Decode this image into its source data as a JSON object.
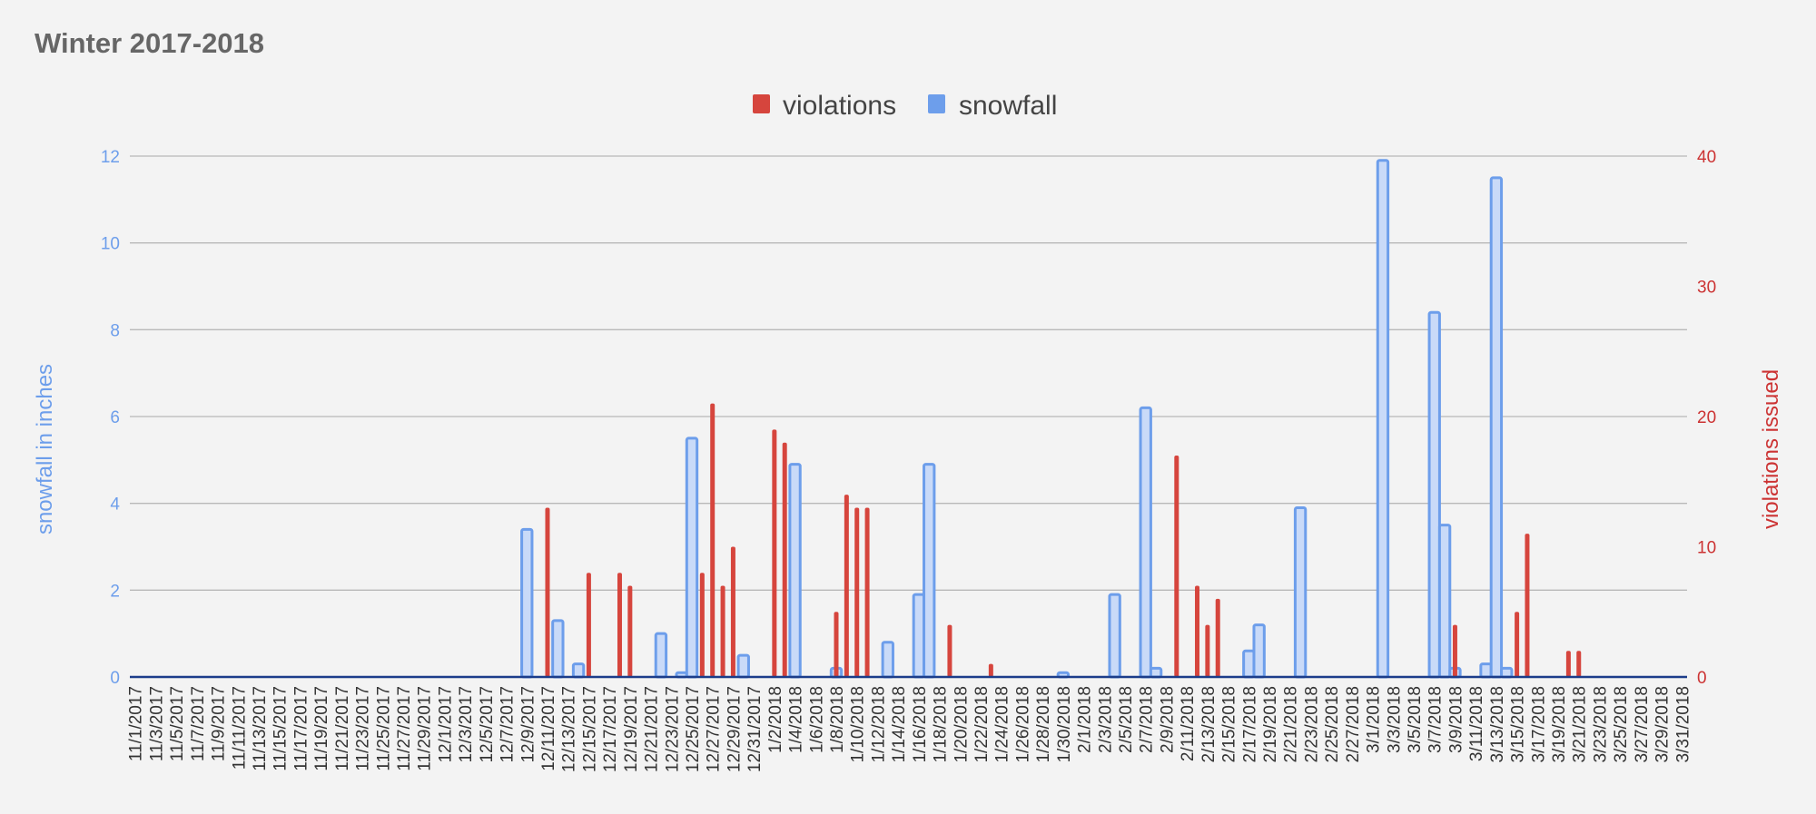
{
  "chart_data": {
    "title": "Winter 2017-2018",
    "type": "bar",
    "left_axis": {
      "label": "snowfall in inches",
      "ticks": [
        "0",
        "2",
        "4",
        "6",
        "8",
        "10",
        "12"
      ],
      "range": [
        0,
        12
      ]
    },
    "right_axis": {
      "label": "violations issued",
      "ticks": [
        "0",
        "10",
        "20",
        "30",
        "40"
      ],
      "range": [
        0,
        40
      ]
    },
    "legend": [
      "violations",
      "snowfall"
    ],
    "legend_position": "top-center",
    "colors": {
      "violations": "#d6453d",
      "snowfall": "#6d9eeb",
      "snowfall_fill": "#c9daf8",
      "axis": "#1c3d8a",
      "left_axis_text": "#6d9eeb",
      "right_axis_text": "#cc3333"
    },
    "x_labels": [
      "11/1/2017",
      "11/3/2017",
      "11/5/2017",
      "11/7/2017",
      "11/9/2017",
      "11/11/2017",
      "11/13/2017",
      "11/15/2017",
      "11/17/2017",
      "11/19/2017",
      "11/21/2017",
      "11/23/2017",
      "11/25/2017",
      "11/27/2017",
      "11/29/2017",
      "12/1/2017",
      "12/3/2017",
      "12/5/2017",
      "12/7/2017",
      "12/9/2017",
      "12/11/2017",
      "12/13/2017",
      "12/15/2017",
      "12/17/2017",
      "12/19/2017",
      "12/21/2017",
      "12/23/2017",
      "12/25/2017",
      "12/27/2017",
      "12/29/2017",
      "12/31/2017",
      "1/2/2018",
      "1/4/2018",
      "1/6/2018",
      "1/8/2018",
      "1/10/2018",
      "1/12/2018",
      "1/14/2018",
      "1/16/2018",
      "1/18/2018",
      "1/20/2018",
      "1/22/2018",
      "1/24/2018",
      "1/26/2018",
      "1/28/2018",
      "1/30/2018",
      "2/1/2018",
      "2/3/2018",
      "2/5/2018",
      "2/7/2018",
      "2/9/2018",
      "2/11/2018",
      "2/13/2018",
      "2/15/2018",
      "2/17/2018",
      "2/19/2018",
      "2/21/2018",
      "2/23/2018",
      "2/25/2018",
      "2/27/2018",
      "3/1/2018",
      "3/3/2018",
      "3/5/2018",
      "3/7/2018",
      "3/9/2018",
      "3/11/2018",
      "3/13/2018",
      "3/15/2018",
      "3/17/2018",
      "3/19/2018",
      "3/21/2018",
      "3/23/2018",
      "3/25/2018",
      "3/27/2018",
      "3/29/2018",
      "3/31/2018"
    ],
    "snowfall": [
      {
        "date": "12/9/2017",
        "value": 3.4
      },
      {
        "date": "12/12/2017",
        "value": 1.3
      },
      {
        "date": "12/14/2017",
        "value": 0.3
      },
      {
        "date": "12/22/2017",
        "value": 1.0
      },
      {
        "date": "12/24/2017",
        "value": 0.1
      },
      {
        "date": "12/25/2017",
        "value": 5.5
      },
      {
        "date": "12/30/2017",
        "value": 0.5
      },
      {
        "date": "1/4/2018",
        "value": 4.9
      },
      {
        "date": "1/8/2018",
        "value": 0.2
      },
      {
        "date": "1/13/2018",
        "value": 0.8
      },
      {
        "date": "1/16/2018",
        "value": 1.9
      },
      {
        "date": "1/17/2018",
        "value": 4.9
      },
      {
        "date": "1/30/2018",
        "value": 0.1
      },
      {
        "date": "2/4/2018",
        "value": 1.9
      },
      {
        "date": "2/7/2018",
        "value": 6.2
      },
      {
        "date": "2/8/2018",
        "value": 0.2
      },
      {
        "date": "2/17/2018",
        "value": 0.6
      },
      {
        "date": "2/18/2018",
        "value": 1.2
      },
      {
        "date": "2/22/2018",
        "value": 3.9
      },
      {
        "date": "3/2/2018",
        "value": 11.9
      },
      {
        "date": "3/7/2018",
        "value": 8.4
      },
      {
        "date": "3/8/2018",
        "value": 3.5
      },
      {
        "date": "3/9/2018",
        "value": 0.2
      },
      {
        "date": "3/12/2018",
        "value": 0.3
      },
      {
        "date": "3/13/2018",
        "value": 11.5
      },
      {
        "date": "3/14/2018",
        "value": 0.2
      }
    ],
    "violations": [
      {
        "date": "12/11/2017",
        "value": 13
      },
      {
        "date": "12/15/2017",
        "value": 8
      },
      {
        "date": "12/18/2017",
        "value": 8
      },
      {
        "date": "12/19/2017",
        "value": 7
      },
      {
        "date": "12/26/2017",
        "value": 8
      },
      {
        "date": "12/27/2017",
        "value": 21
      },
      {
        "date": "12/28/2017",
        "value": 7
      },
      {
        "date": "12/29/2017",
        "value": 10
      },
      {
        "date": "1/2/2018",
        "value": 19
      },
      {
        "date": "1/3/2018",
        "value": 18
      },
      {
        "date": "1/8/2018",
        "value": 5
      },
      {
        "date": "1/9/2018",
        "value": 14
      },
      {
        "date": "1/10/2018",
        "value": 13
      },
      {
        "date": "1/11/2018",
        "value": 13
      },
      {
        "date": "1/19/2018",
        "value": 4
      },
      {
        "date": "1/23/2018",
        "value": 1
      },
      {
        "date": "2/10/2018",
        "value": 17
      },
      {
        "date": "2/12/2018",
        "value": 7
      },
      {
        "date": "2/13/2018",
        "value": 4
      },
      {
        "date": "2/14/2018",
        "value": 6
      },
      {
        "date": "3/9/2018",
        "value": 4
      },
      {
        "date": "3/15/2018",
        "value": 5
      },
      {
        "date": "3/16/2018",
        "value": 11
      },
      {
        "date": "3/20/2018",
        "value": 2
      },
      {
        "date": "3/21/2018",
        "value": 2
      }
    ]
  }
}
